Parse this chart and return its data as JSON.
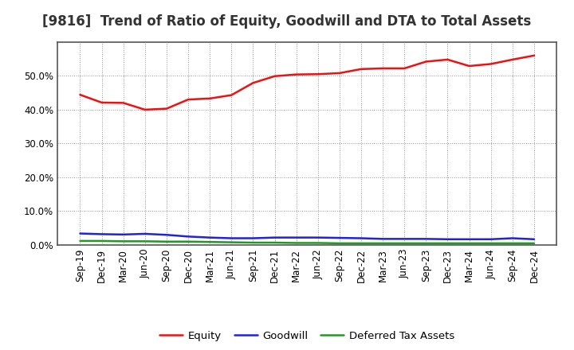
{
  "title": "[9816]  Trend of Ratio of Equity, Goodwill and DTA to Total Assets",
  "x_labels": [
    "Sep-19",
    "Dec-19",
    "Mar-20",
    "Jun-20",
    "Sep-20",
    "Dec-20",
    "Mar-21",
    "Jun-21",
    "Sep-21",
    "Dec-21",
    "Mar-22",
    "Jun-22",
    "Sep-22",
    "Dec-22",
    "Mar-23",
    "Jun-23",
    "Sep-23",
    "Dec-23",
    "Mar-24",
    "Jun-24",
    "Sep-24",
    "Dec-24"
  ],
  "equity": [
    0.444,
    0.421,
    0.42,
    0.4,
    0.403,
    0.43,
    0.433,
    0.443,
    0.479,
    0.499,
    0.504,
    0.505,
    0.508,
    0.52,
    0.522,
    0.522,
    0.542,
    0.548,
    0.529,
    0.535,
    0.548,
    0.56
  ],
  "goodwill": [
    0.034,
    0.032,
    0.031,
    0.033,
    0.03,
    0.025,
    0.022,
    0.02,
    0.02,
    0.022,
    0.022,
    0.022,
    0.021,
    0.02,
    0.018,
    0.018,
    0.018,
    0.017,
    0.017,
    0.017,
    0.02,
    0.017
  ],
  "dta": [
    0.012,
    0.012,
    0.011,
    0.011,
    0.01,
    0.01,
    0.009,
    0.008,
    0.007,
    0.007,
    0.006,
    0.006,
    0.005,
    0.005,
    0.005,
    0.005,
    0.005,
    0.005,
    0.005,
    0.005,
    0.005,
    0.005
  ],
  "equity_color": "#EE1111",
  "goodwill_color": "#2222DD",
  "dta_color": "#229922",
  "background_color": "#FFFFFF",
  "plot_bg_color": "#FFFFFF",
  "grid_color": "#888888",
  "spine_color": "#555555",
  "ylim": [
    0.0,
    0.6
  ],
  "yticks": [
    0.0,
    0.1,
    0.2,
    0.3,
    0.4,
    0.5
  ],
  "legend_labels": [
    "Equity",
    "Goodwill",
    "Deferred Tax Assets"
  ],
  "title_fontsize": 12,
  "tick_fontsize": 8.5,
  "line_width": 1.8
}
